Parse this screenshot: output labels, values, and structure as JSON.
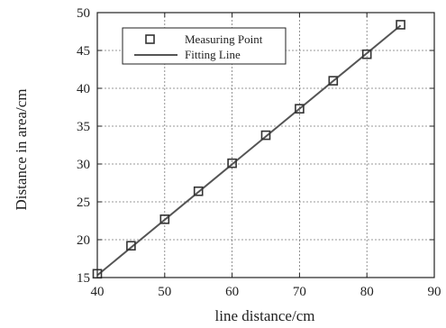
{
  "chart_data": {
    "type": "scatter",
    "xlabel": "line distance/cm",
    "ylabel": "Distance in area/cm",
    "xlim": [
      40,
      90
    ],
    "ylim": [
      15,
      50
    ],
    "xticks": [
      40,
      50,
      60,
      70,
      80,
      90
    ],
    "yticks": [
      15,
      20,
      25,
      30,
      35,
      40,
      45,
      50
    ],
    "grid": true,
    "legend_position": "top-left",
    "series": [
      {
        "name": "Measuring Point",
        "marker": "square",
        "x": [
          40,
          45,
          50,
          55,
          60,
          65,
          70,
          75,
          80,
          85
        ],
        "y": [
          15.5,
          19.2,
          22.7,
          26.4,
          30.1,
          33.8,
          37.3,
          41.0,
          44.5,
          48.4
        ]
      },
      {
        "name": "Fitting Line",
        "type": "line",
        "x": [
          40,
          85
        ],
        "y": [
          15.3,
          48.3
        ]
      }
    ]
  }
}
